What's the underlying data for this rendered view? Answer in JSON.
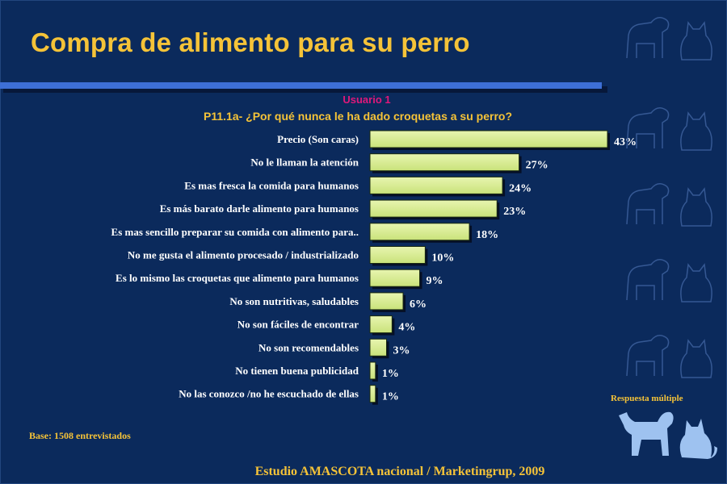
{
  "slide": {
    "title": "Compra de alimento para su perro",
    "subtitle": "Usuario 1",
    "question": "P11.1a- ¿Por qué nunca le ha dado croquetas a su perro?",
    "base": "Base: 1508 entrevistados",
    "note": "Respuesta múltiple",
    "footer": "Estudio AMASCOTA nacional  / Marketingrup, 2009"
  },
  "colors": {
    "background": "#0b2a5c",
    "accent_rule": "#3d6fd6",
    "title_text": "#f5c338",
    "subtitle_text": "#e0187a",
    "bar_fill": "#e8f5b0",
    "bar_fill_dark": "#c9e27a",
    "label_text": "#ffffff",
    "icon_outline": "#3a5d9a",
    "logo_fill": "#9ec2f0"
  },
  "icons": [
    "dog-outline-icon",
    "cat-outline-icon",
    "dog-logo-icon",
    "cat-logo-icon"
  ],
  "chart_data": {
    "type": "bar",
    "orientation": "horizontal",
    "categories": [
      "Precio (Son caras)",
      "No le llaman la atención",
      "Es mas fresca la comida para humanos",
      "Es más barato darle alimento para humanos",
      "Es mas sencillo preparar su comida con alimento para..",
      "No me gusta el alimento procesado / industrializado",
      "Es lo mismo las croquetas que alimento para humanos",
      "No son nutritivas, saludables",
      "No son fáciles de encontrar",
      "No son recomendables",
      "No tienen buena publicidad",
      "No las conozco /no he escuchado de ellas"
    ],
    "values": [
      43,
      27,
      24,
      23,
      18,
      10,
      9,
      6,
      4,
      3,
      1,
      1
    ],
    "value_labels": [
      "43%",
      "27%",
      "24%",
      "23%",
      "18%",
      "10%",
      "9%",
      "6%",
      "4%",
      "3%",
      "1%",
      "1%"
    ],
    "unit": "%",
    "xlim": [
      0,
      43
    ],
    "grid": false,
    "legend": "none"
  }
}
